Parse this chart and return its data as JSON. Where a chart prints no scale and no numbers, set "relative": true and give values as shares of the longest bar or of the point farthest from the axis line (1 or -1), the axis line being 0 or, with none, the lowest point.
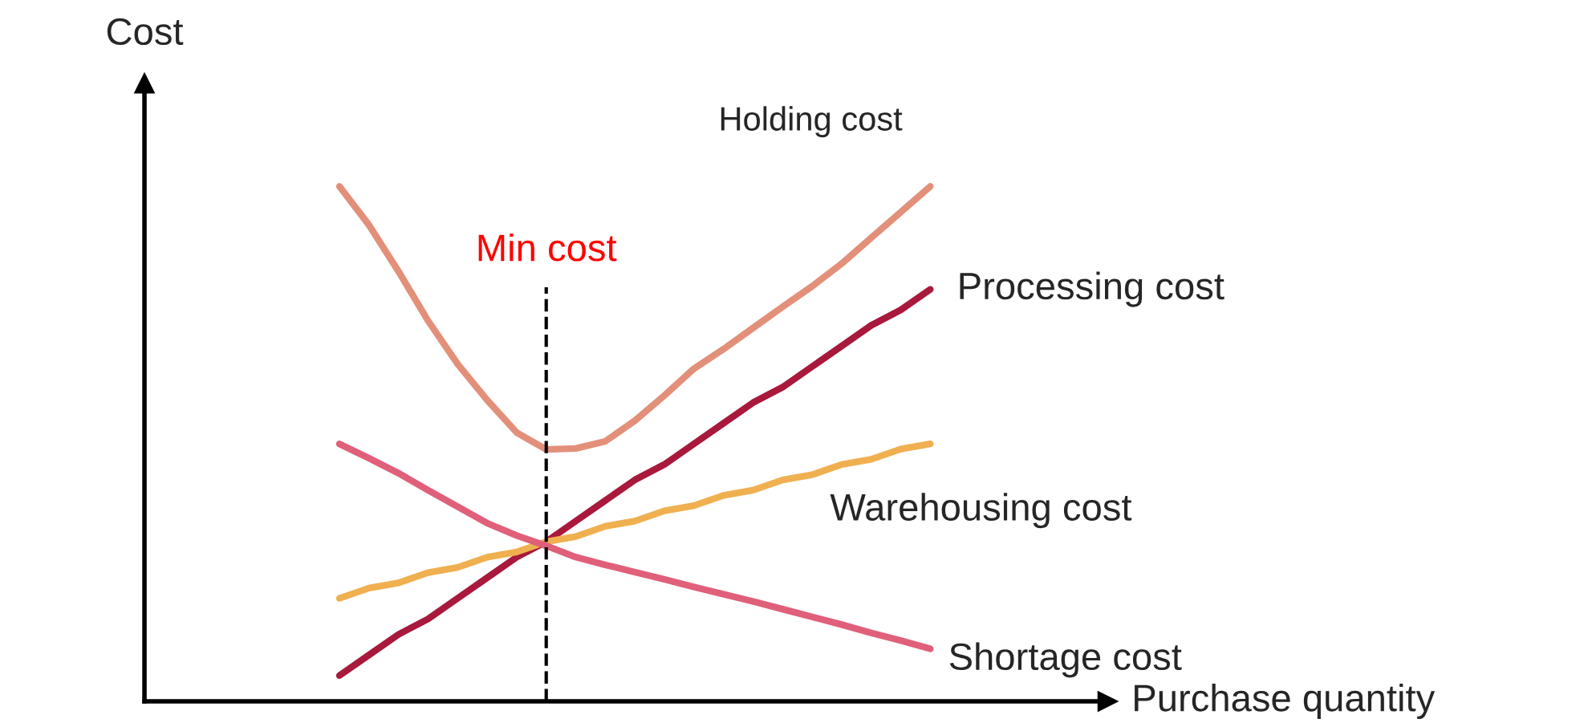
{
  "chart_data": {
    "type": "line",
    "annotations": [
      "Cost",
      "Purchase quantity",
      "Min cost"
    ],
    "relative": true,
    "categories": [
      null,
      null,
      null,
      null,
      null,
      null,
      null,
      null,
      null,
      null,
      null,
      null,
      null,
      null,
      null,
      null,
      null,
      null,
      null,
      null,
      null
    ],
    "grid": false,
    "legend": false,
    "marker": "none",
    "line_style": "solid",
    "series": [
      {
        "name": "Holding cost",
        "color": "#e3907a",
        "values": [
          1.0,
          0.925,
          0.835,
          0.739,
          0.655,
          0.585,
          0.522,
          0.489,
          0.491,
          0.505,
          0.545,
          0.594,
          0.646,
          0.684,
          0.725,
          0.766,
          0.806,
          0.85,
          0.9,
          0.95,
          1.0
        ]
      },
      {
        "name": "Processing cost",
        "color": "#a8193c",
        "values": [
          0.05,
          0.09,
          0.13,
          0.16,
          0.2,
          0.24,
          0.28,
          0.31,
          0.35,
          0.39,
          0.43,
          0.46,
          0.5,
          0.54,
          0.58,
          0.61,
          0.65,
          0.69,
          0.73,
          0.76,
          0.8
        ]
      },
      {
        "name": "Warehousing cost",
        "color": "#f0b050",
        "values": [
          0.2,
          0.22,
          0.23,
          0.25,
          0.26,
          0.28,
          0.29,
          0.31,
          0.32,
          0.34,
          0.35,
          0.37,
          0.38,
          0.4,
          0.41,
          0.43,
          0.44,
          0.46,
          0.47,
          0.49,
          0.5
        ]
      },
      {
        "name": "Shortage cost",
        "color": "#e0607a",
        "values": [
          0.5,
          0.472,
          0.443,
          0.41,
          0.378,
          0.346,
          0.322,
          0.302,
          0.28,
          0.265,
          0.251,
          0.237,
          0.222,
          0.208,
          0.194,
          0.179,
          0.164,
          0.149,
          0.133,
          0.118,
          0.102
        ]
      }
    ]
  }
}
